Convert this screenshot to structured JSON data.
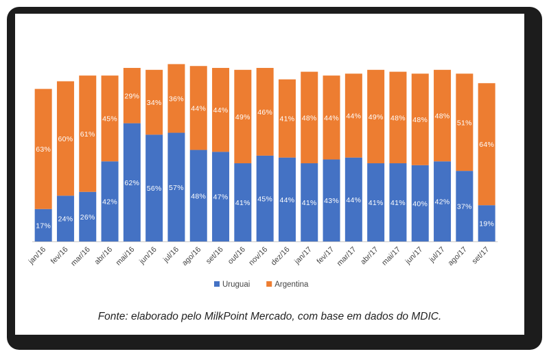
{
  "chart_data": {
    "type": "bar",
    "stacked": true,
    "title": "",
    "xlabel": "",
    "ylabel": "",
    "ylim": [
      0,
      100
    ],
    "categories": [
      "jan/16",
      "fev/16",
      "mar/16",
      "abr/16",
      "mai/16",
      "jun/16",
      "jul/16",
      "ago/16",
      "set/16",
      "out/16",
      "nov/16",
      "dez/16",
      "jan/17",
      "fev/17",
      "mar/17",
      "abr/17",
      "mai/17",
      "jun/17",
      "jul/17",
      "ago/17",
      "set/17"
    ],
    "series": [
      {
        "name": "Uruguai",
        "color": "#4472C4",
        "values": [
          17,
          24,
          26,
          42,
          62,
          56,
          57,
          48,
          47,
          41,
          45,
          44,
          41,
          43,
          44,
          41,
          41,
          40,
          42,
          37,
          19
        ],
        "labels": [
          "17%",
          "24%",
          "26%",
          "42%",
          "62%",
          "56%",
          "57%",
          "48%",
          "47%",
          "41%",
          "45%",
          "44%",
          "41%",
          "43%",
          "44%",
          "41%",
          "41%",
          "40%",
          "42%",
          "37%",
          "19%"
        ]
      },
      {
        "name": "Argentina",
        "color": "#ED7D31",
        "values": [
          63,
          60,
          61,
          45,
          29,
          34,
          36,
          44,
          44,
          49,
          46,
          41,
          48,
          44,
          44,
          49,
          48,
          48,
          48,
          51,
          64
        ],
        "labels": [
          "63%",
          "60%",
          "61%",
          "45%",
          "29%",
          "34%",
          "36%",
          "44%",
          "44%",
          "49%",
          "46%",
          "41%",
          "48%",
          "44%",
          "44%",
          "49%",
          "48%",
          "48%",
          "48%",
          "51%",
          "64%"
        ]
      }
    ],
    "legend": "bottom"
  },
  "source_note": "Fonte: elaborado pelo MilkPoint Mercado, com base em dados do MDIC."
}
